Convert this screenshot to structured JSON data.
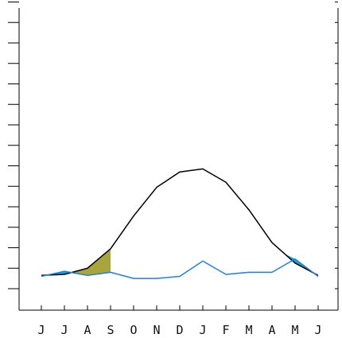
{
  "chart_data": {
    "type": "line",
    "title": "",
    "xlabel": "",
    "ylabel": "",
    "categories": [
      "J",
      "J",
      "A",
      "S",
      "O",
      "N",
      "D",
      "J",
      "F",
      "M",
      "A",
      "M",
      "J"
    ],
    "ylim": [
      0,
      14
    ],
    "grid": false,
    "legend": "none",
    "series": [
      {
        "color": "#000000",
        "values": [
          0.65,
          0.7,
          1.0,
          1.95,
          3.55,
          4.95,
          5.7,
          5.85,
          5.2,
          3.85,
          2.25,
          1.25,
          0.65
        ]
      },
      {
        "color": "#1f7fe0",
        "values": [
          0.6,
          0.85,
          0.65,
          0.8,
          0.5,
          0.5,
          0.6,
          1.35,
          0.7,
          0.8,
          0.8,
          1.45,
          0.6
        ]
      }
    ],
    "fill_colors": {
      "deficit": "#a8a63a",
      "surplus": "#14a6d6"
    },
    "frame": {
      "left_ticks": 14,
      "right_ticks": 14
    }
  }
}
